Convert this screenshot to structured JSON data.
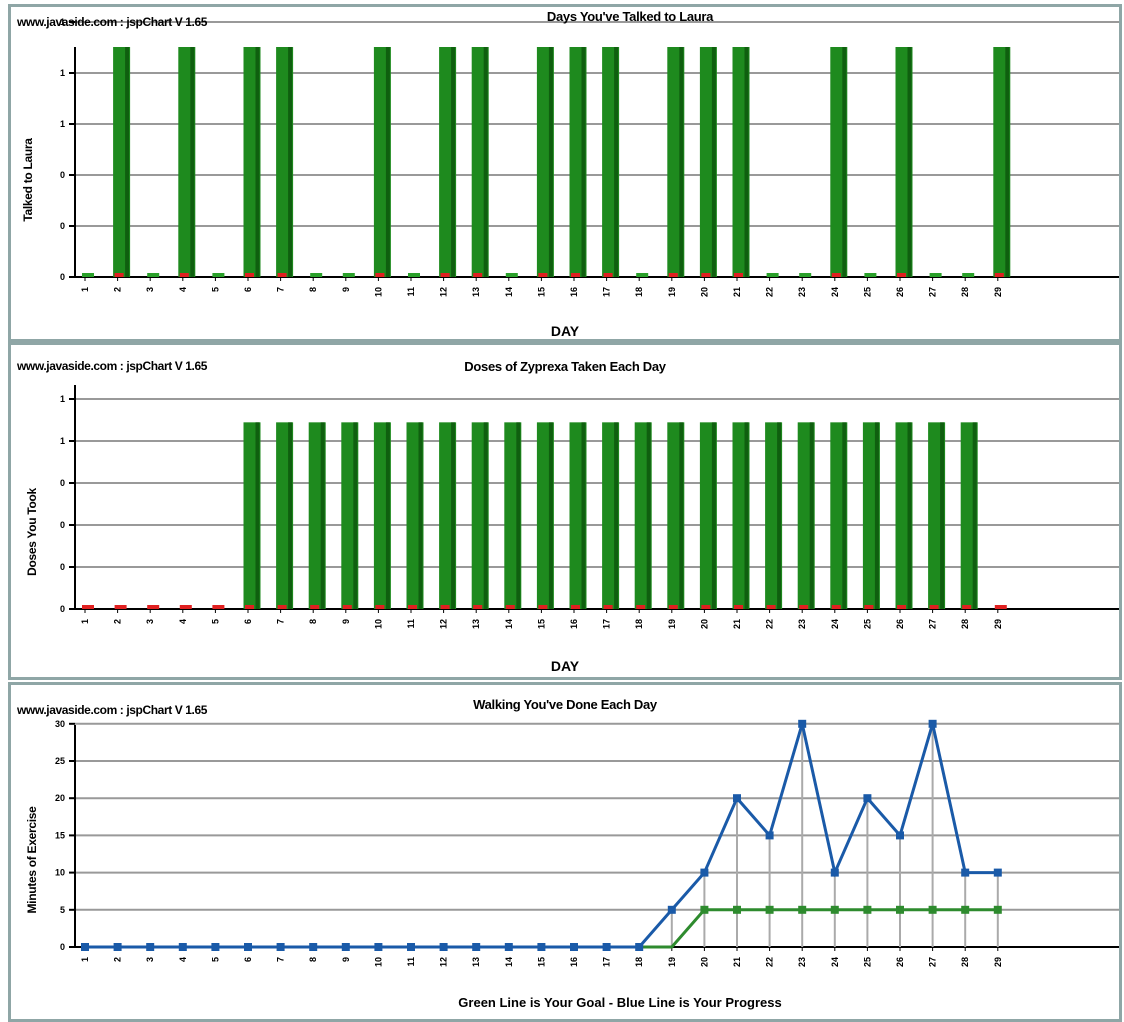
{
  "charts": [
    {
      "credit": "www.javaside.com : jspChart V 1.65",
      "title": "Days You've Talked to Laura",
      "xlabel": "DAY",
      "ylabel": "Talked to Laura"
    },
    {
      "credit": "www.javaside.com : jspChart V 1.65",
      "title": "Doses of Zyprexa Taken Each Day",
      "xlabel": "DAY",
      "ylabel": "Doses You Took"
    },
    {
      "credit": "www.javaside.com : jspChart V 1.65",
      "title": "Walking You've Done Each Day",
      "xlabel": "Green Line is Your Goal  -  Blue Line is Your Progress",
      "ylabel": "Minutes of Exercise"
    }
  ],
  "colors": {
    "bar_green": "#1e8a1e",
    "bar_dark": "#0f5f0f",
    "marker_red": "#e02020",
    "goal_line": "#2e8b2e",
    "progress_line": "#1a5aa8",
    "grid": "#999999",
    "border": "#8fa6a6"
  },
  "chart_data": [
    {
      "type": "bar",
      "title": "Days You've Talked to Laura",
      "xlabel": "DAY",
      "ylabel": "Talked to Laura",
      "categories": [
        "1",
        "2",
        "3",
        "4",
        "5",
        "6",
        "7",
        "8",
        "9",
        "10",
        "11",
        "12",
        "13",
        "14",
        "15",
        "16",
        "17",
        "18",
        "19",
        "20",
        "21",
        "22",
        "23",
        "24",
        "25",
        "26",
        "27",
        "28",
        "29"
      ],
      "values": [
        0,
        1,
        0,
        1,
        0,
        1,
        1,
        0,
        0,
        1,
        0,
        1,
        1,
        0,
        1,
        1,
        1,
        0,
        1,
        1,
        1,
        0,
        0,
        1,
        0,
        1,
        0,
        0,
        1
      ],
      "ylim": [
        0,
        1
      ],
      "ytick_labels": [
        "0",
        "0",
        "0",
        "1",
        "1",
        "1"
      ],
      "grid": true
    },
    {
      "type": "bar",
      "title": "Doses of Zyprexa Taken Each Day",
      "xlabel": "DAY",
      "ylabel": "Doses You Took",
      "categories": [
        "1",
        "2",
        "3",
        "4",
        "5",
        "6",
        "7",
        "8",
        "9",
        "10",
        "11",
        "12",
        "13",
        "14",
        "15",
        "16",
        "17",
        "18",
        "19",
        "20",
        "21",
        "22",
        "23",
        "24",
        "25",
        "26",
        "27",
        "28",
        "29"
      ],
      "values": [
        0,
        0,
        0,
        0,
        0,
        1,
        1,
        1,
        1,
        1,
        1,
        1,
        1,
        1,
        1,
        1,
        1,
        1,
        1,
        1,
        1,
        1,
        1,
        1,
        1,
        1,
        1,
        1,
        0
      ],
      "ylim": [
        0,
        1.2
      ],
      "ytick_labels": [
        "0",
        "0",
        "0",
        "0",
        "1",
        "1"
      ],
      "grid": true
    },
    {
      "type": "line",
      "title": "Walking You've Done Each Day",
      "xlabel": "Green Line is Your Goal  -  Blue Line is Your Progress",
      "ylabel": "Minutes of Exercise",
      "x": [
        "1",
        "2",
        "3",
        "4",
        "5",
        "6",
        "7",
        "8",
        "9",
        "10",
        "11",
        "12",
        "13",
        "14",
        "15",
        "16",
        "17",
        "18",
        "19",
        "20",
        "21",
        "22",
        "23",
        "24",
        "25",
        "26",
        "27",
        "28",
        "29"
      ],
      "series": [
        {
          "values": [
            0,
            0,
            0,
            0,
            0,
            0,
            0,
            0,
            0,
            0,
            0,
            0,
            0,
            0,
            0,
            0,
            0,
            0,
            0,
            5,
            5,
            5,
            5,
            5,
            5,
            5,
            5,
            5,
            5
          ]
        },
        {
          "values": [
            0,
            0,
            0,
            0,
            0,
            0,
            0,
            0,
            0,
            0,
            0,
            0,
            0,
            0,
            0,
            0,
            0,
            0,
            5,
            10,
            20,
            15,
            30,
            10,
            20,
            15,
            30,
            10,
            10
          ]
        }
      ],
      "ylim": [
        0,
        30
      ],
      "ytick_labels": [
        "0",
        "5",
        "10",
        "15",
        "20",
        "25",
        "30"
      ],
      "grid": true
    }
  ]
}
